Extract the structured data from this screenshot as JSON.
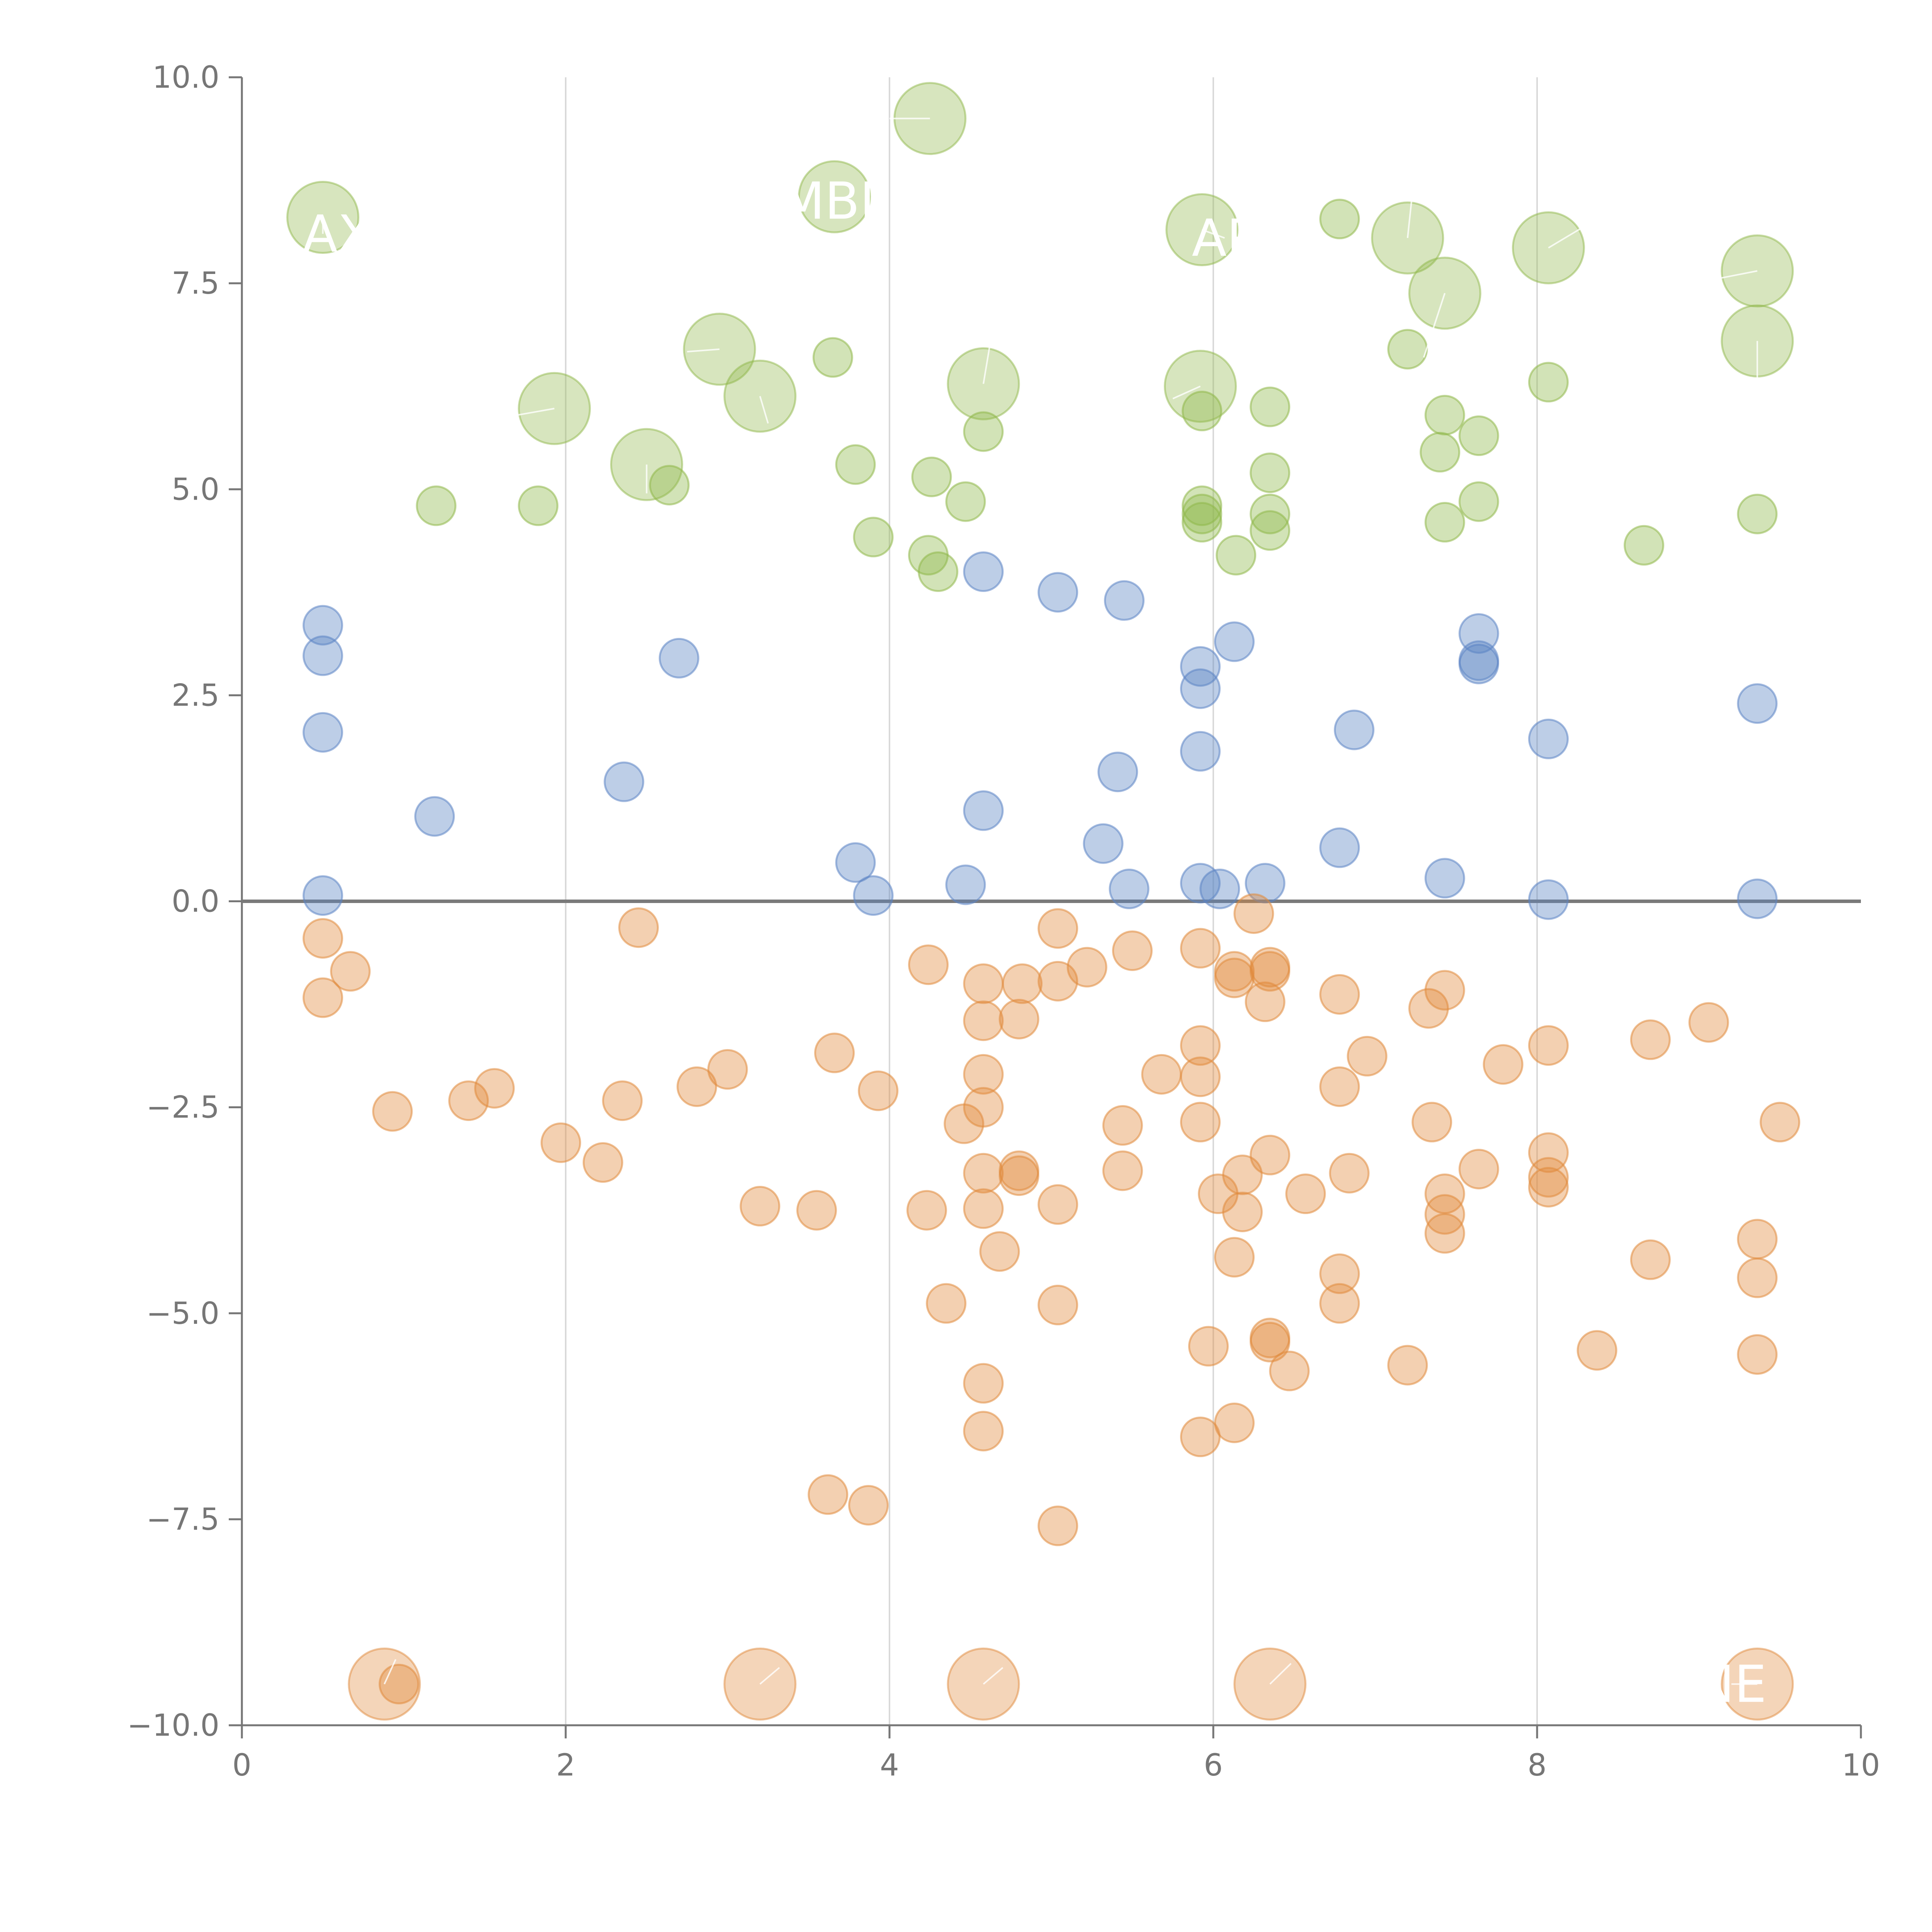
{
  "chart_data": {
    "type": "scatter",
    "title": "",
    "xlabel": "",
    "ylabel": "",
    "xlim": [
      0,
      10
    ],
    "ylim": [
      -10,
      10
    ],
    "x_ticks": [
      0,
      2,
      4,
      6,
      8,
      10
    ],
    "x_tick_labels": [
      "0",
      "2",
      "4",
      "6",
      "8",
      "10"
    ],
    "y_ticks": [
      10,
      7.5,
      5,
      2.5,
      0,
      -2.5,
      -5,
      -7.5,
      -10
    ],
    "y_tick_labels": [
      "10.0",
      "7.5",
      "5.0",
      "2.5",
      "0.0",
      "−2.5",
      "−5.0",
      "−7.5",
      "−10.0"
    ],
    "vertical_gridlines": true,
    "zero_line": true,
    "colors": {
      "green": "#8fb84a",
      "blue": "#5b84c4",
      "orange": "#e08a3c",
      "axis": "#767676",
      "grid": "#d9d9d9",
      "zero_line": "#7a7a7a",
      "callout_text": "#ffffff"
    },
    "series": [
      {
        "name": "green",
        "color": "#8fb84a",
        "points": [
          [
            1.2,
            4.8
          ],
          [
            1.83,
            4.8
          ],
          [
            2.64,
            5.05
          ],
          [
            3.65,
            6.6
          ],
          [
            3.79,
            5.3
          ],
          [
            3.9,
            4.42
          ],
          [
            4.24,
            4.2
          ],
          [
            4.26,
            5.15
          ],
          [
            4.3,
            4.0
          ],
          [
            4.47,
            4.85
          ],
          [
            4.58,
            5.7
          ],
          [
            5.93,
            5.95
          ],
          [
            5.93,
            4.8
          ],
          [
            5.93,
            4.7
          ],
          [
            5.93,
            4.6
          ],
          [
            6.14,
            4.2
          ],
          [
            6.35,
            6.0
          ],
          [
            6.35,
            5.2
          ],
          [
            6.35,
            4.7
          ],
          [
            6.35,
            4.5
          ],
          [
            6.78,
            8.28
          ],
          [
            7.2,
            6.7
          ],
          [
            7.4,
            5.45
          ],
          [
            7.43,
            5.9
          ],
          [
            7.43,
            4.6
          ],
          [
            7.64,
            5.65
          ],
          [
            7.64,
            4.85
          ],
          [
            8.07,
            6.3
          ],
          [
            8.66,
            4.32
          ],
          [
            9.36,
            4.7
          ]
        ]
      },
      {
        "name": "blue",
        "color": "#5b84c4",
        "points": [
          [
            0.5,
            3.35
          ],
          [
            0.5,
            2.98
          ],
          [
            0.5,
            2.05
          ],
          [
            0.5,
            0.07
          ],
          [
            1.19,
            1.03
          ],
          [
            2.36,
            1.45
          ],
          [
            2.7,
            2.95
          ],
          [
            3.79,
            0.47
          ],
          [
            3.9,
            0.07
          ],
          [
            4.47,
            0.2
          ],
          [
            4.58,
            4.0
          ],
          [
            4.58,
            1.1
          ],
          [
            5.04,
            3.75
          ],
          [
            5.32,
            0.7
          ],
          [
            5.41,
            1.57
          ],
          [
            5.45,
            3.65
          ],
          [
            5.48,
            0.15
          ],
          [
            5.92,
            2.85
          ],
          [
            5.92,
            2.58
          ],
          [
            5.92,
            1.82
          ],
          [
            5.92,
            0.22
          ],
          [
            6.04,
            0.15
          ],
          [
            6.13,
            3.15
          ],
          [
            6.32,
            0.22
          ],
          [
            6.78,
            0.65
          ],
          [
            6.87,
            2.08
          ],
          [
            7.43,
            0.28
          ],
          [
            7.64,
            3.25
          ],
          [
            7.64,
            2.92
          ],
          [
            7.64,
            2.88
          ],
          [
            8.07,
            1.97
          ],
          [
            8.07,
            0.02
          ],
          [
            9.36,
            2.4
          ],
          [
            9.36,
            0.03
          ]
        ]
      },
      {
        "name": "orange",
        "color": "#e08a3c",
        "points": [
          [
            0.5,
            -0.45
          ],
          [
            0.5,
            -1.17
          ],
          [
            0.67,
            -0.85
          ],
          [
            0.93,
            -2.55
          ],
          [
            0.97,
            -9.5
          ],
          [
            1.4,
            -2.42
          ],
          [
            1.56,
            -2.27
          ],
          [
            1.97,
            -2.93
          ],
          [
            2.23,
            -3.17
          ],
          [
            2.35,
            -2.42
          ],
          [
            2.45,
            -0.32
          ],
          [
            2.81,
            -2.25
          ],
          [
            3.0,
            -2.04
          ],
          [
            3.2,
            -3.7
          ],
          [
            3.55,
            -3.75
          ],
          [
            3.62,
            -7.2
          ],
          [
            3.66,
            -1.84
          ],
          [
            3.87,
            -7.33
          ],
          [
            3.93,
            -2.3
          ],
          [
            4.23,
            -3.75
          ],
          [
            4.24,
            -0.77
          ],
          [
            4.35,
            -4.88
          ],
          [
            4.46,
            -2.7
          ],
          [
            4.58,
            -1.0
          ],
          [
            4.58,
            -1.45
          ],
          [
            4.58,
            -2.1
          ],
          [
            4.58,
            -2.5
          ],
          [
            4.58,
            -3.3
          ],
          [
            4.58,
            -3.73
          ],
          [
            4.58,
            -5.85
          ],
          [
            4.58,
            -6.43
          ],
          [
            4.68,
            -4.25
          ],
          [
            4.8,
            -3.27
          ],
          [
            4.8,
            -3.33
          ],
          [
            4.8,
            -1.43
          ],
          [
            4.82,
            -1.0
          ],
          [
            5.04,
            -0.33
          ],
          [
            5.04,
            -0.97
          ],
          [
            5.04,
            -3.68
          ],
          [
            5.04,
            -4.9
          ],
          [
            5.04,
            -7.58
          ],
          [
            5.22,
            -0.8
          ],
          [
            5.44,
            -2.72
          ],
          [
            5.44,
            -3.27
          ],
          [
            5.5,
            -0.6
          ],
          [
            5.68,
            -2.1
          ],
          [
            5.92,
            -0.57
          ],
          [
            5.92,
            -1.75
          ],
          [
            5.92,
            -2.13
          ],
          [
            5.92,
            -2.68
          ],
          [
            5.92,
            -6.5
          ],
          [
            5.97,
            -5.4
          ],
          [
            6.03,
            -3.55
          ],
          [
            6.13,
            -0.85
          ],
          [
            6.13,
            -0.93
          ],
          [
            6.13,
            -4.32
          ],
          [
            6.13,
            -6.33
          ],
          [
            6.18,
            -3.32
          ],
          [
            6.18,
            -3.77
          ],
          [
            6.25,
            -0.15
          ],
          [
            6.32,
            -1.22
          ],
          [
            6.35,
            -0.8
          ],
          [
            6.35,
            -0.85
          ],
          [
            6.35,
            -3.08
          ],
          [
            6.35,
            -5.3
          ],
          [
            6.35,
            -5.35
          ],
          [
            6.47,
            -5.7
          ],
          [
            6.57,
            -3.55
          ],
          [
            6.78,
            -1.13
          ],
          [
            6.78,
            -2.25
          ],
          [
            6.78,
            -4.52
          ],
          [
            6.78,
            -4.88
          ],
          [
            6.84,
            -3.3
          ],
          [
            6.95,
            -1.88
          ],
          [
            7.2,
            -5.63
          ],
          [
            7.33,
            -1.3
          ],
          [
            7.35,
            -2.68
          ],
          [
            7.43,
            -1.08
          ],
          [
            7.43,
            -3.55
          ],
          [
            7.43,
            -3.8
          ],
          [
            7.43,
            -4.03
          ],
          [
            7.64,
            -3.25
          ],
          [
            7.79,
            -1.98
          ],
          [
            8.07,
            -1.75
          ],
          [
            8.07,
            -3.05
          ],
          [
            8.07,
            -3.35
          ],
          [
            8.07,
            -3.47
          ],
          [
            8.37,
            -5.45
          ],
          [
            8.7,
            -1.68
          ],
          [
            8.7,
            -4.35
          ],
          [
            9.06,
            -1.47
          ],
          [
            9.36,
            -4.1
          ],
          [
            9.36,
            -4.57
          ],
          [
            9.36,
            -5.5
          ],
          [
            9.5,
            -2.68
          ]
        ]
      }
    ],
    "callouts": [
      {
        "label": "LAX",
        "series": "green",
        "x": 0.5,
        "y": 8.3,
        "text_x": 0.5,
        "text_y": 8.1
      },
      {
        "label": "MBL",
        "series": "green",
        "x": 3.66,
        "y": 8.55,
        "text_x": 3.66,
        "text_y": 8.5
      },
      {
        "label": "",
        "series": "green",
        "x": 4.25,
        "y": 9.5,
        "text_x": 4.0,
        "text_y": 9.5
      },
      {
        "label": "AP",
        "series": "green",
        "x": 5.93,
        "y": 8.15,
        "text_x": 6.07,
        "text_y": 8.05
      },
      {
        "label": "",
        "series": "green",
        "x": 7.2,
        "y": 8.05,
        "text_x": 7.23,
        "text_y": 8.6
      },
      {
        "label": "",
        "series": "green",
        "x": 7.43,
        "y": 7.38,
        "text_x": 7.3,
        "text_y": 6.6
      },
      {
        "label": "",
        "series": "green",
        "x": 8.07,
        "y": 7.93,
        "text_x": 8.3,
        "text_y": 8.2
      },
      {
        "label": "",
        "series": "green",
        "x": 9.36,
        "y": 7.65,
        "text_x": 9.1,
        "text_y": 7.55
      },
      {
        "label": "",
        "series": "green",
        "x": 9.36,
        "y": 6.8,
        "text_x": 9.36,
        "text_y": 6.35
      },
      {
        "label": "",
        "series": "green",
        "x": 1.93,
        "y": 5.98,
        "text_x": 1.7,
        "text_y": 5.9
      },
      {
        "label": "",
        "series": "green",
        "x": 2.95,
        "y": 6.7,
        "text_x": 2.75,
        "text_y": 6.67
      },
      {
        "label": "",
        "series": "green",
        "x": 3.2,
        "y": 6.13,
        "text_x": 3.25,
        "text_y": 5.8
      },
      {
        "label": "",
        "series": "green",
        "x": 2.5,
        "y": 5.3,
        "text_x": 2.5,
        "text_y": 4.95
      },
      {
        "label": "",
        "series": "green",
        "x": 4.58,
        "y": 6.28,
        "text_x": 4.62,
        "text_y": 6.75
      },
      {
        "label": "",
        "series": "green",
        "x": 5.92,
        "y": 6.25,
        "text_x": 5.75,
        "text_y": 6.1
      },
      {
        "label": "",
        "series": "orange",
        "x": 0.88,
        "y": -9.5,
        "text_x": 0.95,
        "text_y": -9.2
      },
      {
        "label": "",
        "series": "orange",
        "x": 3.2,
        "y": -9.5,
        "text_x": 3.32,
        "text_y": -9.3
      },
      {
        "label": "",
        "series": "orange",
        "x": 4.58,
        "y": -9.5,
        "text_x": 4.7,
        "text_y": -9.3
      },
      {
        "label": "",
        "series": "orange",
        "x": 6.35,
        "y": -9.5,
        "text_x": 6.48,
        "text_y": -9.25
      },
      {
        "label": "NE",
        "series": "orange",
        "x": 9.36,
        "y": -9.5,
        "text_x": 9.2,
        "text_y": -9.5
      }
    ]
  }
}
